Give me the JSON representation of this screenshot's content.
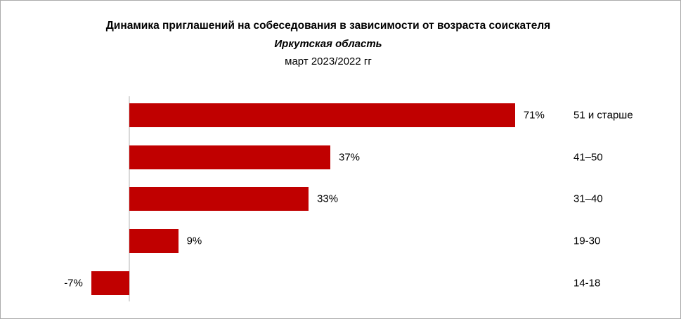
{
  "header": {
    "title": "Динамика приглашений на собеседования в зависимости от возраста соискателя",
    "subtitle": "Иркутская область",
    "period": "март 2023/2022 гг"
  },
  "colors": {
    "bar": "#c00000",
    "axis": "#d9d9d9",
    "text": "#000000",
    "border": "#ababab"
  },
  "chart_data": {
    "type": "bar",
    "orientation": "horizontal",
    "title": "Динамика приглашений на собеседования в зависимости от возраста соискателя",
    "subtitle": "Иркутская область",
    "period": "март 2023/2022 гг",
    "categories": [
      "51 и старше",
      "41–50",
      "31–40",
      "19-30",
      "14-18"
    ],
    "values": [
      71,
      37,
      33,
      9,
      -7
    ],
    "value_labels": [
      "71%",
      "37%",
      "33%",
      "9%",
      "-7%"
    ],
    "xlabel": "",
    "ylabel": "",
    "xlim": [
      -10,
      100
    ],
    "grid": false,
    "legend": false,
    "category_labels_position": "right"
  }
}
